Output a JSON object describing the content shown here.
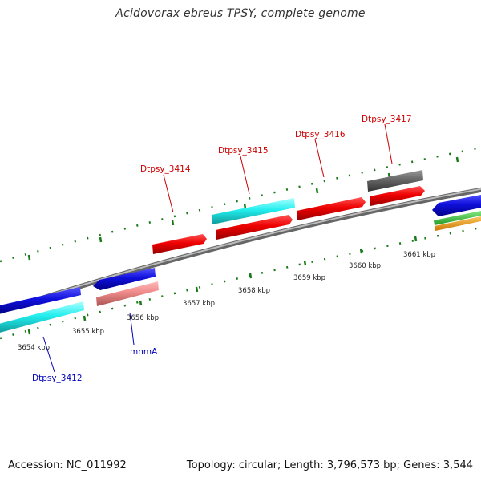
{
  "title": "Acidovorax ebreus TPSY, complete genome",
  "footer": {
    "accession": "Accession: NC_011992",
    "topology": "Topology: circular; Length: 3,796,573 bp; Genes: 3,544"
  },
  "colors": {
    "cds_red": "#ee0000",
    "blue": "#1010dd",
    "cyan": "#22eeee",
    "pink": "#ee8888",
    "gray": "#666666",
    "green": "#33cc33",
    "orange": "#ff9900",
    "tick_green": "#1a7a1a",
    "label_red": "#cc0000",
    "label_blue": "#0000bb"
  },
  "scale": {
    "ticks": [
      {
        "label": "3654 kbp"
      },
      {
        "label": "3655 kbp"
      },
      {
        "label": "3656 kbp"
      },
      {
        "label": "3657 kbp"
      },
      {
        "label": "3658 kbp"
      },
      {
        "label": "3659 kbp"
      },
      {
        "label": "3660 kbp"
      },
      {
        "label": "3661 kbp"
      }
    ]
  },
  "genes": [
    {
      "name": "Dtpsy_3412",
      "label_color": "blue"
    },
    {
      "name": "mnmA",
      "label_color": "blue"
    },
    {
      "name": "Dtpsy_3414",
      "label_color": "red"
    },
    {
      "name": "Dtpsy_3415",
      "label_color": "red"
    },
    {
      "name": "Dtpsy_3416",
      "label_color": "red"
    },
    {
      "name": "Dtpsy_3417",
      "label_color": "red"
    }
  ]
}
